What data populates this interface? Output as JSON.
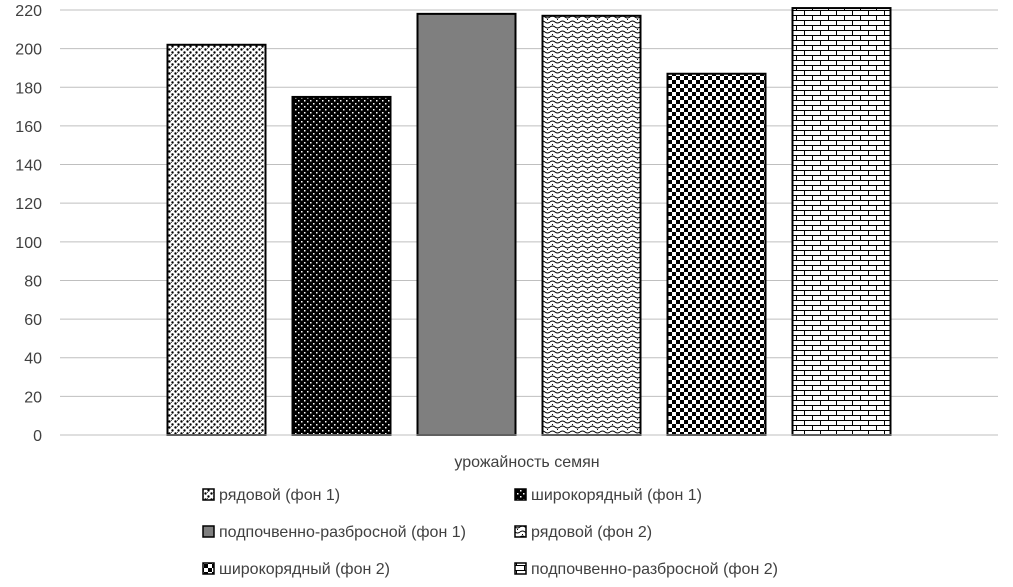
{
  "chart_data": {
    "type": "bar",
    "categories": [
      "урожайность семян"
    ],
    "series": [
      {
        "name": "рядовой (фон 1)",
        "values": [
          202
        ],
        "pattern": "dots-dense"
      },
      {
        "name": "широкорядный (фон 1)",
        "values": [
          175
        ],
        "pattern": "dots-dark"
      },
      {
        "name": "подпочвенно-разбросной (фон 1)",
        "values": [
          218
        ],
        "pattern": "solid-gray"
      },
      {
        "name": "рядовой (фон 2)",
        "values": [
          217
        ],
        "pattern": "wave"
      },
      {
        "name": "широкорядный (фон 2)",
        "values": [
          187
        ],
        "pattern": "checker"
      },
      {
        "name": "подпочвенно-разбросной (фон 2)",
        "values": [
          221
        ],
        "pattern": "brick"
      }
    ],
    "yticks": [
      "0",
      "20",
      "40",
      "60",
      "80",
      "100",
      "120",
      "140",
      "160",
      "180",
      "200",
      "220"
    ],
    "ylim": [
      0,
      220
    ],
    "grid": true,
    "legend": "bottom",
    "colors": {
      "gridline": "#bfbfbf",
      "text": "#404040",
      "bar_border": "#000000",
      "solid_gray": "#7f7f7f"
    }
  }
}
